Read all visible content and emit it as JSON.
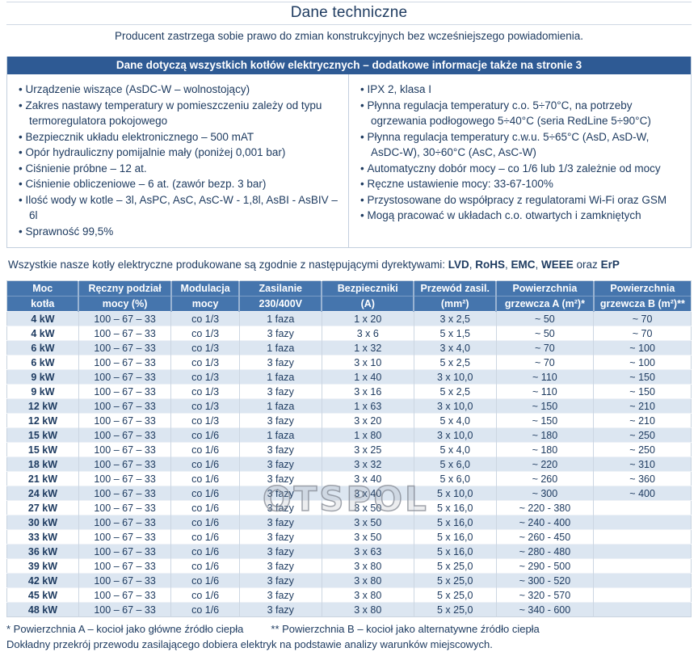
{
  "page": {
    "title": "Dane techniczne",
    "subtitle": "Producent zastrzega sobie prawo do zmian konstrukcyjnych bez wcześniejszego powiadomienia."
  },
  "info_box": {
    "header": "Dane dotyczą wszystkich kotłów elektrycznych – dodatkowe informacje także na stronie 3",
    "left_bullets": [
      "Urządzenie wiszące (AsDC-W – wolnostojący)",
      "Zakres nastawy temperatury w pomieszczeniu zależy od typu termoregulatora pokojowego",
      "Bezpiecznik układu elektronicznego – 500 mAT",
      "Opór hydrauliczny pomijalnie mały (poniżej 0,001 bar)",
      "Ciśnienie próbne – 12 at.",
      "Ciśnienie obliczeniowe – 6 at. (zawór bezp. 3 bar)",
      "Ilość wody w kotle – 3l, AsPC, AsC, AsC-W - 1,8l, AsBI - AsBIV – 6l",
      "Sprawność 99,5%"
    ],
    "right_bullets": [
      "IPX 2, klasa I",
      "Płynna regulacja temperatury c.o. 5÷70°C, na potrzeby ogrzewania podłogowego 5÷40°C (seria RedLine 5÷90°C)",
      "Płynna regulacja temperatury c.w.u. 5÷65°C (AsD, AsD-W, AsDC-W), 30÷60°C (AsC, AsC-W)",
      "Automatyczny dobór mocy – co 1/6 lub 1/3 zależnie od mocy",
      "Ręczne ustawienie mocy: 33-67-100%",
      "Przystosowane do współpracy z regulatorami Wi-Fi oraz GSM",
      "Mogą pracować w układach c.o. otwartych i zamkniętych"
    ]
  },
  "directives": {
    "segments": [
      {
        "text": "Wszystkie nasze kotły elektryczne produkowane są zgodnie z następującymi dyrektywami: ",
        "bold": false
      },
      {
        "text": "LVD",
        "bold": true
      },
      {
        "text": ", ",
        "bold": false
      },
      {
        "text": "RoHS",
        "bold": true
      },
      {
        "text": ", ",
        "bold": false
      },
      {
        "text": "EMC",
        "bold": true
      },
      {
        "text": ", ",
        "bold": false
      },
      {
        "text": "WEEE",
        "bold": true
      },
      {
        "text": " oraz ",
        "bold": false
      },
      {
        "text": "ErP",
        "bold": true
      }
    ]
  },
  "table": {
    "headers": [
      {
        "line1": "Moc",
        "line2": "kotła"
      },
      {
        "line1": "Ręczny podział",
        "line2": "mocy (%)"
      },
      {
        "line1": "Modulacja",
        "line2": "mocy"
      },
      {
        "line1": "Zasilanie",
        "line2": "230/400V"
      },
      {
        "line1": "Bezpieczniki",
        "line2": "(A)"
      },
      {
        "line1": "Przewód zasil.",
        "line2": "(mm²)"
      },
      {
        "line1": "Powierzchnia",
        "line2": "grzewcza A (m²)*"
      },
      {
        "line1": "Powierzchnia",
        "line2": "grzewcza B (m²)**"
      }
    ],
    "col_widths_pct": [
      10.5,
      13.5,
      10,
      12,
      13.5,
      12,
      14.25,
      14.25
    ],
    "rows": [
      [
        "4 kW",
        "100 – 67 – 33",
        "co 1/3",
        "1 faza",
        "1 x 20",
        "3 x 2,5",
        "~ 50",
        "~ 70"
      ],
      [
        "4 kW",
        "100 – 67 – 33",
        "co 1/3",
        "3 fazy",
        "3 x 6",
        "5 x 1,5",
        "~ 50",
        "~ 70"
      ],
      [
        "6 kW",
        "100 – 67 – 33",
        "co 1/3",
        "1 faza",
        "1 x 32",
        "3 x 4,0",
        "~ 70",
        "~ 100"
      ],
      [
        "6 kW",
        "100 – 67 – 33",
        "co 1/3",
        "3 fazy",
        "3 x 10",
        "5 x 2,5",
        "~ 70",
        "~ 100"
      ],
      [
        "9 kW",
        "100 – 67 – 33",
        "co 1/3",
        "1 faza",
        "1 x 40",
        "3 x 10,0",
        "~ 110",
        "~ 150"
      ],
      [
        "9 kW",
        "100 – 67 – 33",
        "co 1/3",
        "3 fazy",
        "3 x 16",
        "5 x 2,5",
        "~ 110",
        "~ 150"
      ],
      [
        "12 kW",
        "100 – 67 – 33",
        "co 1/3",
        "1 faza",
        "1 x 63",
        "3 x 10,0",
        "~ 150",
        "~ 210"
      ],
      [
        "12 kW",
        "100 – 67 – 33",
        "co 1/3",
        "3 fazy",
        "3 x 20",
        "5 x 4,0",
        "~ 150",
        "~ 210"
      ],
      [
        "15 kW",
        "100 – 67 – 33",
        "co 1/6",
        "1 faza",
        "1 x 80",
        "3 x 10,0",
        "~ 180",
        "~ 250"
      ],
      [
        "15 kW",
        "100 – 67 – 33",
        "co 1/6",
        "3 fazy",
        "3 x 25",
        "5 x 4,0",
        "~ 180",
        "~ 250"
      ],
      [
        "18 kW",
        "100 – 67 – 33",
        "co 1/6",
        "3 fazy",
        "3 x 32",
        "5 x 6,0",
        "~ 220",
        "~ 310"
      ],
      [
        "21 kW",
        "100 – 67 – 33",
        "co 1/6",
        "3 fazy",
        "3 x 40",
        "5 x 6,0",
        "~ 260",
        "~ 360"
      ],
      [
        "24 kW",
        "100 – 67 – 33",
        "co 1/6",
        "3 fazy",
        "3 x 40",
        "5 x 10,0",
        "~ 300",
        "~ 400"
      ],
      [
        "27 kW",
        "100 – 67 – 33",
        "co 1/6",
        "3 fazy",
        "3 x 50",
        "5 x 16,0",
        "~ 220 - 380",
        ""
      ],
      [
        "30 kW",
        "100 – 67 – 33",
        "co 1/6",
        "3 fazy",
        "3 x 50",
        "5 x 16,0",
        "~ 240 - 400",
        ""
      ],
      [
        "33 kW",
        "100 – 67 – 33",
        "co 1/6",
        "3 fazy",
        "3 x 50",
        "5 x 16,0",
        "~ 260 - 450",
        ""
      ],
      [
        "36 kW",
        "100 – 67 – 33",
        "co 1/6",
        "3 fazy",
        "3 x 63",
        "5 x 16,0",
        "~ 280 - 480",
        ""
      ],
      [
        "39 kW",
        "100 – 67 – 33",
        "co 1/6",
        "3 fazy",
        "3 x 80",
        "5 x 25,0",
        "~ 290 - 500",
        ""
      ],
      [
        "42 kW",
        "100 – 67 – 33",
        "co 1/6",
        "3 fazy",
        "3 x 80",
        "5 x 25,0",
        "~ 300 - 520",
        ""
      ],
      [
        "45 kW",
        "100 – 67 – 33",
        "co 1/6",
        "3 fazy",
        "3 x 80",
        "5 x 25,0",
        "~ 320 - 570",
        ""
      ],
      [
        "48 kW",
        "100 – 67 – 33",
        "co 1/6",
        "3 fazy",
        "3 x 80",
        "5 x 25,0",
        "~ 340 - 600",
        ""
      ]
    ]
  },
  "watermark": {
    "text": "OTSPOL"
  },
  "footnotes": {
    "a": "* Powierzchnia A – kocioł jako główne źródło ciepła",
    "b": "**  Powierzchnia B – kocioł jako alternatywne źródło ciepła",
    "line2": "Dokładny przekrój przewodu zasilającego dobiera elektryk na podstawie analizy warunków miejscowych."
  },
  "colors": {
    "text_navy": "#1f3c61",
    "banner_blue": "#2e5a94",
    "table_header_blue": "#4575ad",
    "row_shaded": "#dce6f1",
    "border_light": "#c3cfde"
  }
}
